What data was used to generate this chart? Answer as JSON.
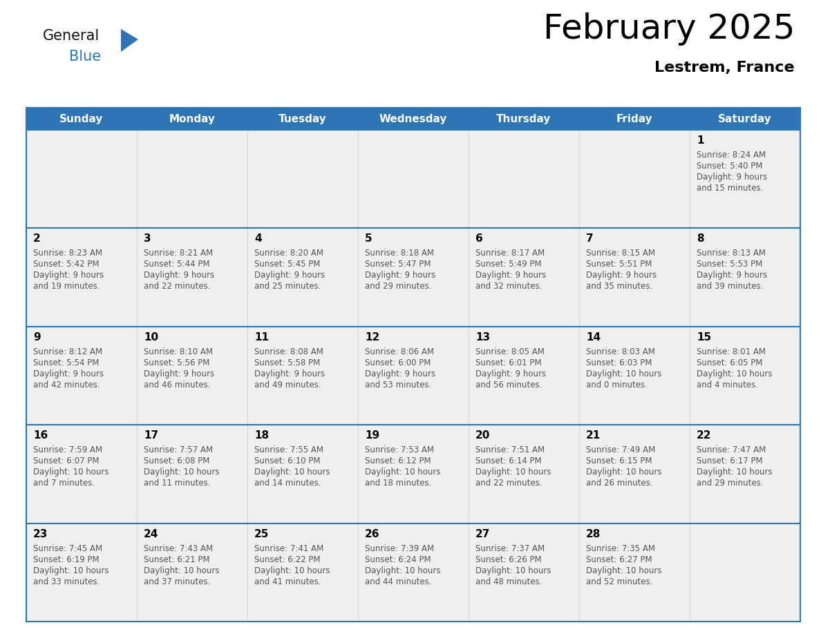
{
  "title": "February 2025",
  "subtitle": "Lestrem, France",
  "days_of_week": [
    "Sunday",
    "Monday",
    "Tuesday",
    "Wednesday",
    "Thursday",
    "Friday",
    "Saturday"
  ],
  "header_bg": "#2E75B6",
  "header_text_color": "#FFFFFF",
  "cell_bg": "#EFEFEF",
  "border_color": "#2E75B6",
  "title_color": "#000000",
  "subtitle_color": "#000000",
  "day_number_color": "#000000",
  "cell_text_color": "#555555",
  "logo_text_color": "#111111",
  "logo_blue_color": "#2E75B6",
  "calendar_data": [
    [
      {
        "day": null,
        "sunrise": null,
        "sunset": null,
        "daylight": null
      },
      {
        "day": null,
        "sunrise": null,
        "sunset": null,
        "daylight": null
      },
      {
        "day": null,
        "sunrise": null,
        "sunset": null,
        "daylight": null
      },
      {
        "day": null,
        "sunrise": null,
        "sunset": null,
        "daylight": null
      },
      {
        "day": null,
        "sunrise": null,
        "sunset": null,
        "daylight": null
      },
      {
        "day": null,
        "sunrise": null,
        "sunset": null,
        "daylight": null
      },
      {
        "day": 1,
        "sunrise": "8:24 AM",
        "sunset": "5:40 PM",
        "daylight": "9 hours\nand 15 minutes."
      }
    ],
    [
      {
        "day": 2,
        "sunrise": "8:23 AM",
        "sunset": "5:42 PM",
        "daylight": "9 hours\nand 19 minutes."
      },
      {
        "day": 3,
        "sunrise": "8:21 AM",
        "sunset": "5:44 PM",
        "daylight": "9 hours\nand 22 minutes."
      },
      {
        "day": 4,
        "sunrise": "8:20 AM",
        "sunset": "5:45 PM",
        "daylight": "9 hours\nand 25 minutes."
      },
      {
        "day": 5,
        "sunrise": "8:18 AM",
        "sunset": "5:47 PM",
        "daylight": "9 hours\nand 29 minutes."
      },
      {
        "day": 6,
        "sunrise": "8:17 AM",
        "sunset": "5:49 PM",
        "daylight": "9 hours\nand 32 minutes."
      },
      {
        "day": 7,
        "sunrise": "8:15 AM",
        "sunset": "5:51 PM",
        "daylight": "9 hours\nand 35 minutes."
      },
      {
        "day": 8,
        "sunrise": "8:13 AM",
        "sunset": "5:53 PM",
        "daylight": "9 hours\nand 39 minutes."
      }
    ],
    [
      {
        "day": 9,
        "sunrise": "8:12 AM",
        "sunset": "5:54 PM",
        "daylight": "9 hours\nand 42 minutes."
      },
      {
        "day": 10,
        "sunrise": "8:10 AM",
        "sunset": "5:56 PM",
        "daylight": "9 hours\nand 46 minutes."
      },
      {
        "day": 11,
        "sunrise": "8:08 AM",
        "sunset": "5:58 PM",
        "daylight": "9 hours\nand 49 minutes."
      },
      {
        "day": 12,
        "sunrise": "8:06 AM",
        "sunset": "6:00 PM",
        "daylight": "9 hours\nand 53 minutes."
      },
      {
        "day": 13,
        "sunrise": "8:05 AM",
        "sunset": "6:01 PM",
        "daylight": "9 hours\nand 56 minutes."
      },
      {
        "day": 14,
        "sunrise": "8:03 AM",
        "sunset": "6:03 PM",
        "daylight": "10 hours\nand 0 minutes."
      },
      {
        "day": 15,
        "sunrise": "8:01 AM",
        "sunset": "6:05 PM",
        "daylight": "10 hours\nand 4 minutes."
      }
    ],
    [
      {
        "day": 16,
        "sunrise": "7:59 AM",
        "sunset": "6:07 PM",
        "daylight": "10 hours\nand 7 minutes."
      },
      {
        "day": 17,
        "sunrise": "7:57 AM",
        "sunset": "6:08 PM",
        "daylight": "10 hours\nand 11 minutes."
      },
      {
        "day": 18,
        "sunrise": "7:55 AM",
        "sunset": "6:10 PM",
        "daylight": "10 hours\nand 14 minutes."
      },
      {
        "day": 19,
        "sunrise": "7:53 AM",
        "sunset": "6:12 PM",
        "daylight": "10 hours\nand 18 minutes."
      },
      {
        "day": 20,
        "sunrise": "7:51 AM",
        "sunset": "6:14 PM",
        "daylight": "10 hours\nand 22 minutes."
      },
      {
        "day": 21,
        "sunrise": "7:49 AM",
        "sunset": "6:15 PM",
        "daylight": "10 hours\nand 26 minutes."
      },
      {
        "day": 22,
        "sunrise": "7:47 AM",
        "sunset": "6:17 PM",
        "daylight": "10 hours\nand 29 minutes."
      }
    ],
    [
      {
        "day": 23,
        "sunrise": "7:45 AM",
        "sunset": "6:19 PM",
        "daylight": "10 hours\nand 33 minutes."
      },
      {
        "day": 24,
        "sunrise": "7:43 AM",
        "sunset": "6:21 PM",
        "daylight": "10 hours\nand 37 minutes."
      },
      {
        "day": 25,
        "sunrise": "7:41 AM",
        "sunset": "6:22 PM",
        "daylight": "10 hours\nand 41 minutes."
      },
      {
        "day": 26,
        "sunrise": "7:39 AM",
        "sunset": "6:24 PM",
        "daylight": "10 hours\nand 44 minutes."
      },
      {
        "day": 27,
        "sunrise": "7:37 AM",
        "sunset": "6:26 PM",
        "daylight": "10 hours\nand 48 minutes."
      },
      {
        "day": 28,
        "sunrise": "7:35 AM",
        "sunset": "6:27 PM",
        "daylight": "10 hours\nand 52 minutes."
      },
      {
        "day": null,
        "sunrise": null,
        "sunset": null,
        "daylight": null
      }
    ]
  ]
}
